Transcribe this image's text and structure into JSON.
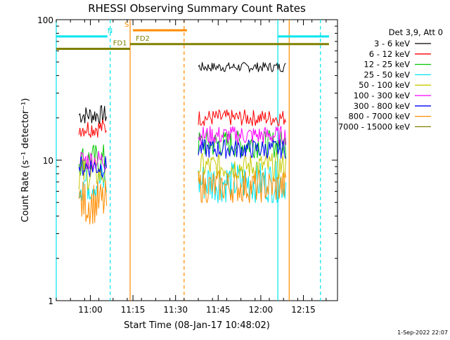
{
  "chart_data": {
    "type": "line",
    "title": "RHESSI Observing Summary Count Rates",
    "xlabel": "Start Time (08-Jan-17 10:48:02)",
    "ylabel": "Count Rate (s⁻¹ detector⁻¹)",
    "yscale": "log",
    "ylim": [
      1,
      100
    ],
    "yticks": [
      {
        "value": 1,
        "label": "1"
      },
      {
        "value": 10,
        "label": "10"
      },
      {
        "value": 100,
        "label": "100"
      }
    ],
    "xlim": [
      "10:48",
      "12:27"
    ],
    "xticks": [
      {
        "value": "11:00",
        "label": "11:00"
      },
      {
        "value": "11:15",
        "label": "11:15"
      },
      {
        "value": "11:30",
        "label": "11:30"
      },
      {
        "value": "11:45",
        "label": "11:45"
      },
      {
        "value": "12:00",
        "label": "12:00"
      },
      {
        "value": "12:15",
        "label": "12:15"
      }
    ],
    "legend": {
      "position": "right",
      "title": "Det 3,9, Att 0"
    },
    "series": [
      {
        "name": "3 - 6 keV",
        "color": "#000000",
        "segments": [
          {
            "start": "10:56",
            "end": "11:06",
            "level": 21,
            "noise": 0.07
          },
          {
            "start": "11:38",
            "end": "12:09",
            "level": 46,
            "noise": 0.035
          }
        ]
      },
      {
        "name": "6 - 12 keV",
        "color": "#ff0000",
        "segments": [
          {
            "start": "10:56",
            "end": "11:06",
            "level": 17,
            "noise": 0.07
          },
          {
            "start": "11:38",
            "end": "12:09",
            "level": 20,
            "noise": 0.06
          }
        ]
      },
      {
        "name": "12 - 25 keV",
        "color": "#00c800",
        "segments": [
          {
            "start": "10:56",
            "end": "11:06",
            "level": 10,
            "noise": 0.12
          },
          {
            "start": "11:38",
            "end": "12:09",
            "level": 13,
            "noise": 0.1
          }
        ]
      },
      {
        "name": "25 - 50 keV",
        "color": "#00e5ee",
        "segments": [
          {
            "start": "10:56",
            "end": "11:06",
            "level": 7,
            "noise": 0.15
          },
          {
            "start": "11:38",
            "end": "12:09",
            "level": 7,
            "noise": 0.15
          }
        ]
      },
      {
        "name": "50 - 100 keV",
        "color": "#c8c800",
        "segments": [
          {
            "start": "10:56",
            "end": "11:06",
            "level": 8,
            "noise": 0.12
          },
          {
            "start": "11:38",
            "end": "12:09",
            "level": 9,
            "noise": 0.1
          }
        ]
      },
      {
        "name": "100 - 300 keV",
        "color": "#ff00ff",
        "segments": [
          {
            "start": "10:56",
            "end": "11:06",
            "level": 10,
            "noise": 0.08
          },
          {
            "start": "11:38",
            "end": "12:09",
            "level": 15,
            "noise": 0.07
          }
        ]
      },
      {
        "name": "300 - 800 keV",
        "color": "#0000ff",
        "segments": [
          {
            "start": "10:56",
            "end": "11:06",
            "level": 9,
            "noise": 0.08
          },
          {
            "start": "11:38",
            "end": "12:09",
            "level": 12,
            "noise": 0.07
          }
        ]
      },
      {
        "name": "800 - 7000 keV",
        "color": "#ff8c00",
        "segments": [
          {
            "start": "10:56",
            "end": "11:06",
            "level": 5,
            "noise": 0.16
          },
          {
            "start": "11:38",
            "end": "12:09",
            "level": 6.5,
            "noise": 0.12
          }
        ]
      },
      {
        "name": "7000 - 15000 keV",
        "color": "#808000",
        "segments": []
      }
    ],
    "vertical_markers": [
      {
        "time": "10:48",
        "color": "#00e5ee",
        "style": "solid"
      },
      {
        "time": "11:07",
        "color": "#00e5ee",
        "style": "dashed"
      },
      {
        "time": "11:14",
        "color": "#ff8c00",
        "style": "solid"
      },
      {
        "time": "11:33",
        "color": "#ff8c00",
        "style": "dashed"
      },
      {
        "time": "12:06",
        "color": "#00e5ee",
        "style": "solid"
      },
      {
        "time": "12:10",
        "color": "#ff8c00",
        "style": "solid"
      },
      {
        "time": "12:21",
        "color": "#00e5ee",
        "style": "dashed"
      }
    ],
    "flag_bars": [
      {
        "label": "N",
        "color": "#00e5ee",
        "start": "10:48",
        "end": "11:06",
        "value": 76,
        "label_time": "11:06"
      },
      {
        "label": "N",
        "color": "#00e5ee",
        "start": "12:06",
        "end": "12:24",
        "value": 76,
        "label_time": ""
      },
      {
        "label": "S",
        "color": "#ff8c00",
        "start": "11:15",
        "end": "11:34",
        "value": 84,
        "label_time": "11:12"
      },
      {
        "label": "FD1",
        "color": "#808000",
        "start": "10:48",
        "end": "11:14",
        "value": 62,
        "label_time": "11:08"
      },
      {
        "label": "FD2",
        "color": "#808000",
        "start": "11:14",
        "end": "12:24",
        "value": 67,
        "label_time": "11:16"
      }
    ]
  },
  "footer": {
    "timestamp": "1-Sep-2022 22:07"
  }
}
